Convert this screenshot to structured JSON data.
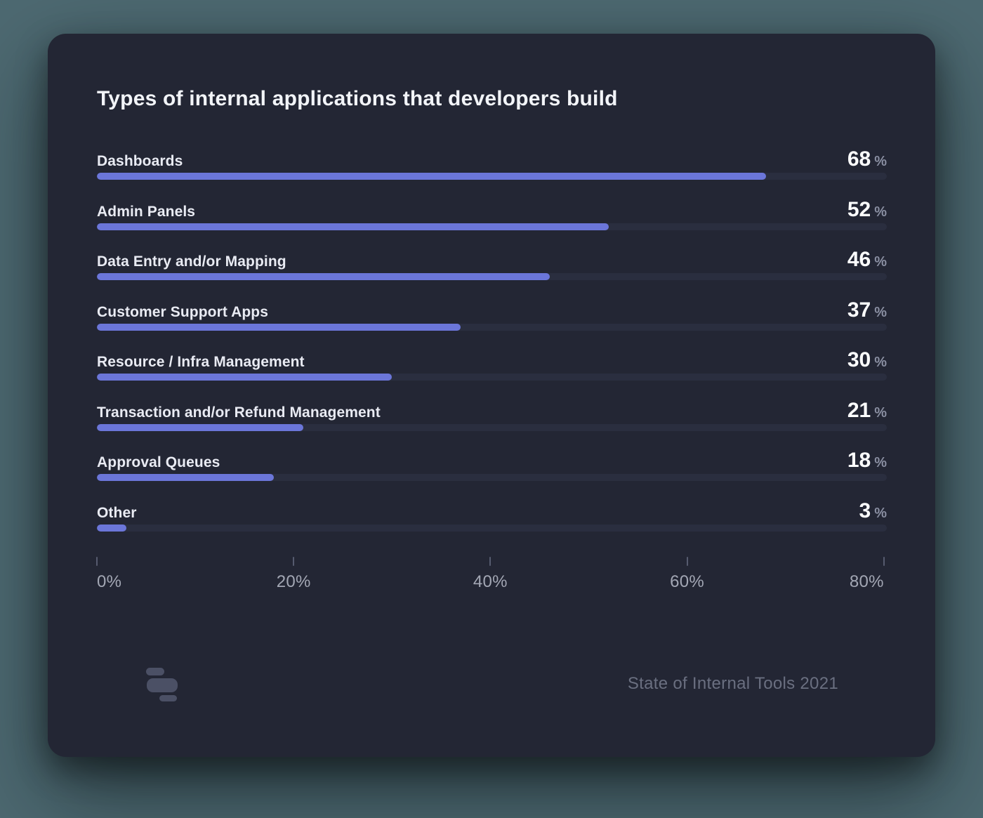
{
  "page": {
    "background_color": "#4D6971"
  },
  "card": {
    "background_color": "#232634",
    "title": "Types of internal applications that developers build"
  },
  "chart_data": {
    "type": "bar",
    "orientation": "horizontal",
    "title": "Types of internal applications that developers build",
    "categories": [
      "Dashboards",
      "Admin Panels",
      "Data Entry and/or Mapping",
      "Customer Support Apps",
      "Resource / Infra Management",
      "Transaction and/or Refund Management",
      "Approval Queues",
      "Other"
    ],
    "values": [
      68,
      52,
      46,
      37,
      30,
      21,
      18,
      3
    ],
    "unit": "%",
    "xlabel": "",
    "ylabel": "",
    "xlim": [
      0,
      80.3
    ],
    "axis_max": 80.3,
    "grid": false,
    "legend": false,
    "bar_color": "#6B76D9",
    "track_color": "#2A2E3F",
    "axis_ticks": [
      {
        "label": "0%",
        "value": 0
      },
      {
        "label": "20%",
        "value": 20
      },
      {
        "label": "40%",
        "value": 40
      },
      {
        "label": "60%",
        "value": 60
      },
      {
        "label": "80%",
        "value": 80
      }
    ]
  },
  "footer": {
    "logo_icon": "retool-logo",
    "source_label": "State of Internal Tools 2021"
  }
}
